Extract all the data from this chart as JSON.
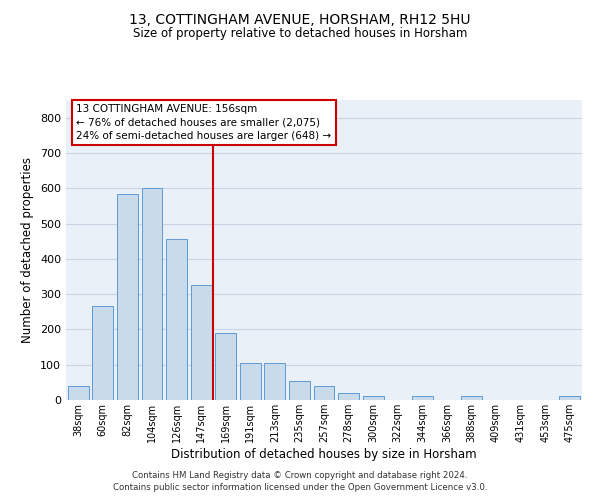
{
  "title1": "13, COTTINGHAM AVENUE, HORSHAM, RH12 5HU",
  "title2": "Size of property relative to detached houses in Horsham",
  "xlabel": "Distribution of detached houses by size in Horsham",
  "ylabel": "Number of detached properties",
  "categories": [
    "38sqm",
    "60sqm",
    "82sqm",
    "104sqm",
    "126sqm",
    "147sqm",
    "169sqm",
    "191sqm",
    "213sqm",
    "235sqm",
    "257sqm",
    "278sqm",
    "300sqm",
    "322sqm",
    "344sqm",
    "366sqm",
    "388sqm",
    "409sqm",
    "431sqm",
    "453sqm",
    "475sqm"
  ],
  "values": [
    40,
    265,
    585,
    600,
    455,
    325,
    190,
    105,
    105,
    55,
    40,
    20,
    10,
    0,
    10,
    0,
    10,
    0,
    0,
    0,
    10
  ],
  "bar_color": "#c9daea",
  "bar_edge_color": "#5b9bd5",
  "red_line_x": 5.5,
  "annotation_text": "13 COTTINGHAM AVENUE: 156sqm\n← 76% of detached houses are smaller (2,075)\n24% of semi-detached houses are larger (648) →",
  "annotation_box_color": "#ffffff",
  "annotation_box_edge": "#cc0000",
  "ylim": [
    0,
    850
  ],
  "yticks": [
    0,
    100,
    200,
    300,
    400,
    500,
    600,
    700,
    800
  ],
  "grid_color": "#c8d4e3",
  "background_color": "#eaf0f8",
  "footer1": "Contains HM Land Registry data © Crown copyright and database right 2024.",
  "footer2": "Contains public sector information licensed under the Open Government Licence v3.0."
}
